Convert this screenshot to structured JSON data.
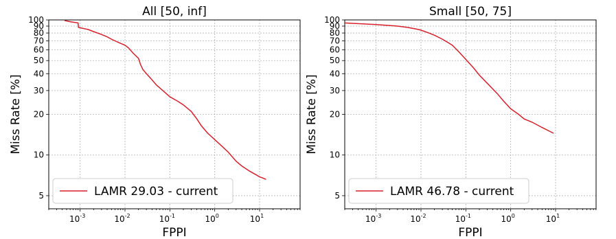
{
  "chart_data": [
    {
      "type": "line",
      "title": "All [50, inf]",
      "xlabel": "FPPI",
      "ylabel": "Miss Rate [%]",
      "xscale": "log",
      "yscale": "log",
      "xlim": [
        0.0002,
        80
      ],
      "ylim": [
        4,
        100
      ],
      "grid": true,
      "legend_position": "lower-left",
      "xtick_labels": [
        "10",
        "10",
        "10",
        "10",
        "10"
      ],
      "xtick_exponents": [
        "-3",
        "-2",
        "-1",
        "0",
        "1"
      ],
      "xtick_values": [
        0.001,
        0.01,
        0.1,
        1,
        10
      ],
      "ytick_values": [
        5,
        10,
        20,
        30,
        40,
        50,
        60,
        70,
        80,
        90,
        100
      ],
      "ytick_labels": [
        "5",
        "10",
        "20",
        "30",
        "40",
        "50",
        "60",
        "70",
        "80",
        "90",
        "100"
      ],
      "series": [
        {
          "name": "LAMR 29.03 - current",
          "color": "#d61f2c",
          "x": [
            0.00045,
            0.0006,
            0.0009,
            0.00092,
            0.0015,
            0.002,
            0.003,
            0.004,
            0.005,
            0.006,
            0.008,
            0.01,
            0.012,
            0.015,
            0.02,
            0.022,
            0.025,
            0.03,
            0.04,
            0.05,
            0.07,
            0.1,
            0.15,
            0.2,
            0.3,
            0.4,
            0.5,
            0.7,
            1.0,
            1.5,
            2.0,
            3.0,
            4.0,
            6.0,
            8.0,
            10.0,
            14.0
          ],
          "y": [
            99,
            97,
            95,
            88,
            85,
            82,
            78,
            75,
            72,
            70,
            67,
            65,
            62,
            57,
            52,
            47,
            43,
            40,
            36,
            33,
            30,
            27,
            25,
            23.5,
            21,
            18.5,
            16.5,
            14.5,
            13,
            11.5,
            10.5,
            9,
            8.3,
            7.6,
            7.2,
            6.9,
            6.6
          ]
        }
      ]
    },
    {
      "type": "line",
      "title": "Small [50, 75]",
      "xlabel": "FPPI",
      "ylabel": "Miss Rate [%]",
      "xscale": "log",
      "yscale": "log",
      "xlim": [
        0.0002,
        80
      ],
      "ylim": [
        4,
        100
      ],
      "grid": true,
      "legend_position": "lower-left",
      "xtick_labels": [
        "10",
        "10",
        "10",
        "10",
        "10"
      ],
      "xtick_exponents": [
        "-3",
        "-2",
        "-1",
        "0",
        "1"
      ],
      "xtick_values": [
        0.001,
        0.01,
        0.1,
        1,
        10
      ],
      "ytick_values": [
        5,
        10,
        20,
        30,
        40,
        50,
        60,
        70,
        80,
        90,
        100
      ],
      "ytick_labels": [
        "5",
        "10",
        "20",
        "30",
        "40",
        "50",
        "60",
        "70",
        "80",
        "90",
        "100"
      ],
      "series": [
        {
          "name": "LAMR 46.78 - current",
          "color": "#d61f2c",
          "x": [
            0.0002,
            0.0005,
            0.001,
            0.002,
            0.003,
            0.005,
            0.008,
            0.01,
            0.015,
            0.02,
            0.03,
            0.04,
            0.05,
            0.07,
            0.1,
            0.15,
            0.2,
            0.3,
            0.5,
            0.7,
            1.0,
            1.5,
            2.0,
            3.0,
            5.0,
            9.0
          ],
          "y": [
            95,
            93.5,
            92.5,
            91,
            90,
            88,
            85.5,
            84,
            80,
            77,
            72,
            68,
            65,
            58,
            51,
            44,
            39,
            34,
            28.5,
            25,
            22,
            20,
            18.5,
            17.5,
            16,
            14.5
          ]
        }
      ]
    }
  ]
}
